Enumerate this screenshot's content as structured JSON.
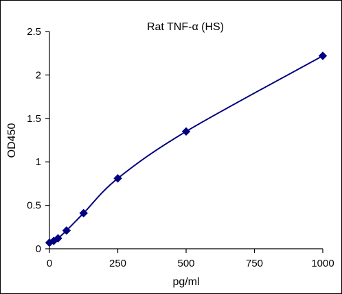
{
  "chart_data": {
    "type": "line",
    "title": "Rat TNF-α (HS)",
    "xlabel": "pg/ml",
    "ylabel": "OD450",
    "xlim": [
      0,
      1000
    ],
    "ylim": [
      0,
      2.5
    ],
    "xticks": [
      0,
      250,
      500,
      750,
      1000
    ],
    "yticks": [
      0,
      0.5,
      1,
      1.5,
      2,
      2.5
    ],
    "xtick_labels": [
      "0",
      "250",
      "500",
      "750",
      "1000"
    ],
    "ytick_labels": [
      "0",
      "0.5",
      "1",
      "1.5",
      "2",
      "2.5"
    ],
    "grid": false,
    "legend": "none",
    "series": [
      {
        "x": [
          0,
          15.6,
          31.25,
          62.5,
          125,
          250,
          500,
          1000
        ],
        "y": [
          0.07,
          0.09,
          0.12,
          0.21,
          0.41,
          0.81,
          1.35,
          2.22
        ],
        "marker": "diamond",
        "smooth": true,
        "color": "#000080"
      }
    ]
  }
}
